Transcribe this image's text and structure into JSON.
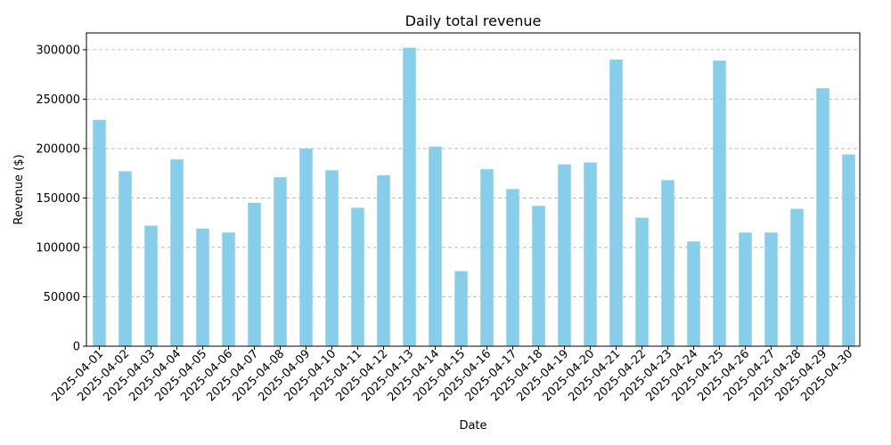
{
  "chart_data": {
    "type": "bar",
    "title": "Daily total revenue",
    "xlabel": "Date",
    "ylabel": "Revenue ($)",
    "ylim": [
      0,
      317000
    ],
    "yticks": [
      0,
      50000,
      100000,
      150000,
      200000,
      250000,
      300000
    ],
    "grid": "y, dashed",
    "bar_color": "#87ceeb",
    "categories": [
      "2025-04-01",
      "2025-04-02",
      "2025-04-03",
      "2025-04-04",
      "2025-04-05",
      "2025-04-06",
      "2025-04-07",
      "2025-04-08",
      "2025-04-09",
      "2025-04-10",
      "2025-04-11",
      "2025-04-12",
      "2025-04-13",
      "2025-04-14",
      "2025-04-15",
      "2025-04-16",
      "2025-04-17",
      "2025-04-18",
      "2025-04-19",
      "2025-04-20",
      "2025-04-21",
      "2025-04-22",
      "2025-04-23",
      "2025-04-24",
      "2025-04-25",
      "2025-04-26",
      "2025-04-27",
      "2025-04-28",
      "2025-04-29",
      "2025-04-30"
    ],
    "values": [
      229000,
      177000,
      122000,
      189000,
      119000,
      115000,
      145000,
      171000,
      200000,
      178000,
      140000,
      173000,
      302000,
      202000,
      76000,
      179000,
      159000,
      142000,
      184000,
      186000,
      290000,
      130000,
      168000,
      106000,
      289000,
      115000,
      115000,
      139000,
      261000,
      194000
    ]
  }
}
